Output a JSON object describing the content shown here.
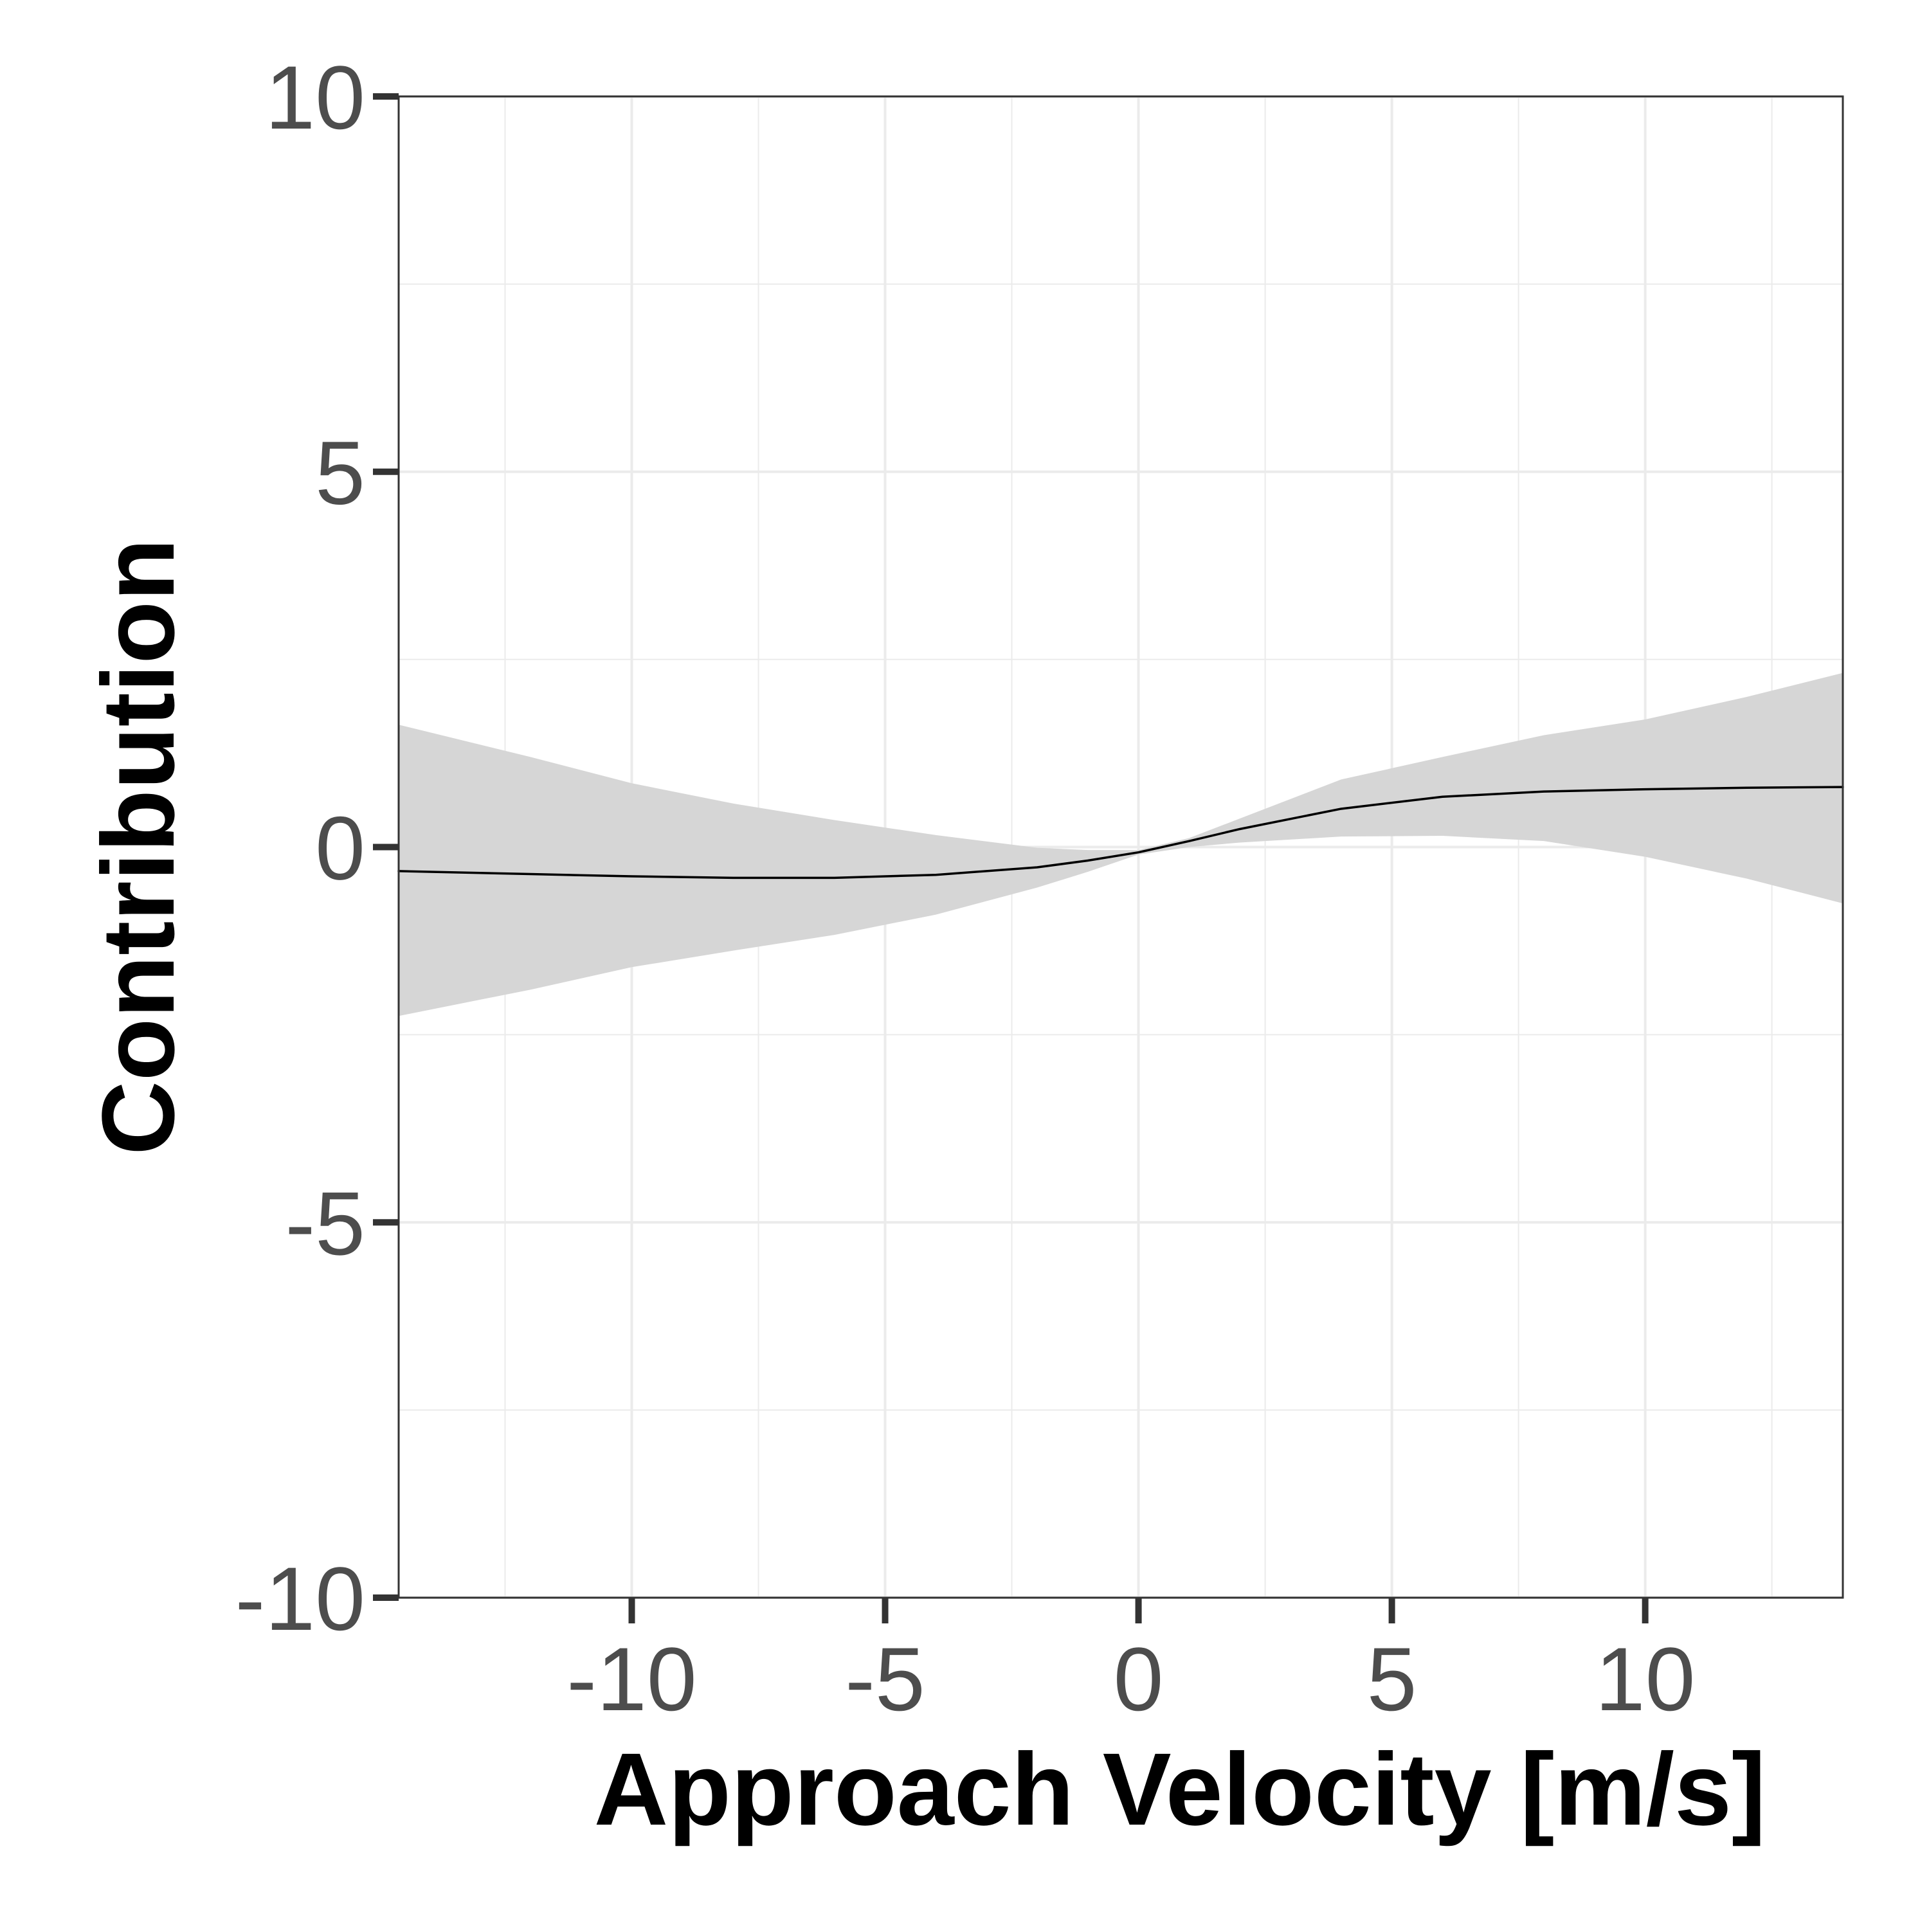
{
  "chart_data": {
    "type": "line",
    "title": "",
    "xlabel": "Approach Velocity [m/s]",
    "ylabel": "Contribution",
    "xlim": [
      -14.6,
      13.9
    ],
    "ylim": [
      -10,
      10
    ],
    "x_ticks": [
      -10,
      -5,
      0,
      5,
      10
    ],
    "x_tick_labels": [
      "-10",
      "-5",
      "0",
      "5",
      "10"
    ],
    "y_ticks": [
      -10,
      -5,
      0,
      5,
      10
    ],
    "y_tick_labels": [
      "-10",
      "-5",
      "0",
      "5",
      "10"
    ],
    "grid": true,
    "legend": "none",
    "colors": {
      "line": "#000000",
      "band": "#d6d6d6",
      "grid": "#ebebeb",
      "panel_border": "#333333",
      "tick_label": "#4d4d4d"
    },
    "series": [
      {
        "x": [
          -14.6,
          -12,
          -10,
          -8,
          -6,
          -4,
          -2,
          -1,
          0,
          1,
          2,
          4,
          6,
          8,
          10,
          12,
          13.9
        ],
        "y": [
          -0.32,
          -0.36,
          -0.39,
          -0.41,
          -0.41,
          -0.37,
          -0.27,
          -0.18,
          -0.07,
          0.08,
          0.24,
          0.51,
          0.67,
          0.74,
          0.77,
          0.79,
          0.8
        ],
        "lower": [
          -2.25,
          -1.9,
          -1.6,
          -1.38,
          -1.17,
          -0.9,
          -0.54,
          -0.33,
          -0.1,
          0.0,
          0.06,
          0.14,
          0.15,
          0.08,
          -0.13,
          -0.42,
          -0.75
        ],
        "upper": [
          1.63,
          1.2,
          0.85,
          0.58,
          0.36,
          0.16,
          -0.01,
          -0.04,
          -0.04,
          0.12,
          0.38,
          0.9,
          1.2,
          1.49,
          1.7,
          2.0,
          2.32
        ]
      }
    ]
  }
}
